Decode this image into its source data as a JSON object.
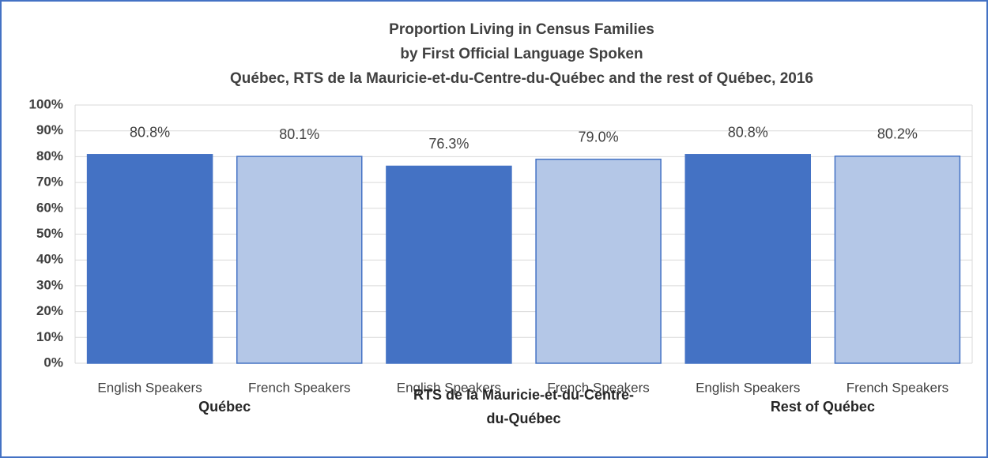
{
  "chart_data": {
    "type": "bar",
    "title": [
      "Proportion Living in Census Families",
      "by First Official Language Spoken",
      "Québec, RTS de la Mauricie-et-du-Centre-du-Québec and the rest of Québec, 2016"
    ],
    "categories": [
      "Québec",
      "RTS de la Mauricie-et-du-Centre-du-Québec",
      "Rest of Québec"
    ],
    "series": [
      {
        "name": "English Speakers",
        "color": "#4472c4",
        "values": [
          80.8,
          76.3,
          80.8
        ],
        "value_labels": [
          "80.8%",
          "76.3%",
          "80.8%"
        ]
      },
      {
        "name": "French Speakers",
        "color": "#b4c7e7",
        "values": [
          80.1,
          79.0,
          80.2
        ],
        "value_labels": [
          "80.1%",
          "79.0%",
          "80.2%"
        ]
      }
    ],
    "ylim": [
      0,
      100
    ],
    "yticks": [
      {
        "value": 0,
        "label": "0%"
      },
      {
        "value": 10,
        "label": "10%"
      },
      {
        "value": 20,
        "label": "20%"
      },
      {
        "value": 30,
        "label": "30%"
      },
      {
        "value": 40,
        "label": "40%"
      },
      {
        "value": 50,
        "label": "50%"
      },
      {
        "value": 60,
        "label": "60%"
      },
      {
        "value": 70,
        "label": "70%"
      },
      {
        "value": 80,
        "label": "80%"
      },
      {
        "value": 90,
        "label": "90%"
      },
      {
        "value": 100,
        "label": "100%"
      }
    ],
    "grid": true
  }
}
